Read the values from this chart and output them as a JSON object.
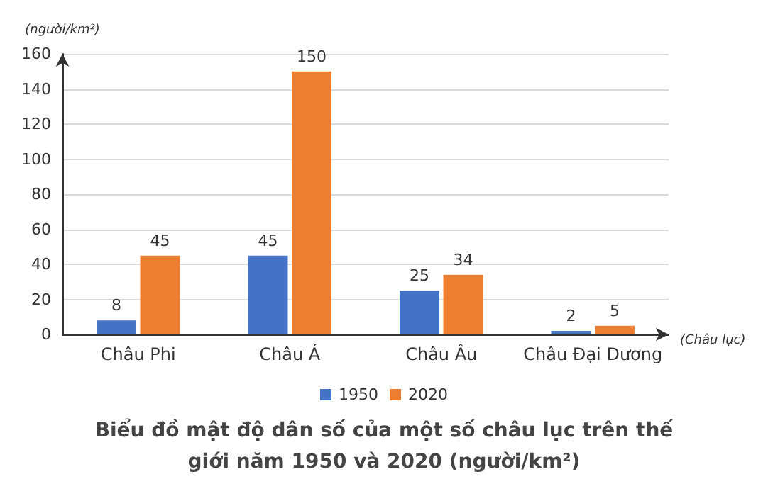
{
  "chart_data": {
    "type": "bar",
    "title": "Biểu đồ mật độ dân số của một số châu lục trên thế giới năm 1950 và 2020 (người/km²)",
    "xlabel": "(Châu lục)",
    "ylabel": "(người/km²)",
    "categories": [
      "Châu Phi",
      "Châu Á",
      "Châu Âu",
      "Châu Đại Dương"
    ],
    "series": [
      {
        "name": "1950",
        "color": "#4472c4",
        "values": [
          8,
          45,
          25,
          2
        ]
      },
      {
        "name": "2020",
        "color": "#ed7d31",
        "values": [
          45,
          150,
          34,
          5
        ]
      }
    ],
    "ylim": [
      0,
      160
    ],
    "yticks": [
      0,
      20,
      40,
      60,
      80,
      100,
      120,
      140,
      160
    ],
    "grid": "y",
    "legend": "bottom",
    "data_labels": true
  }
}
